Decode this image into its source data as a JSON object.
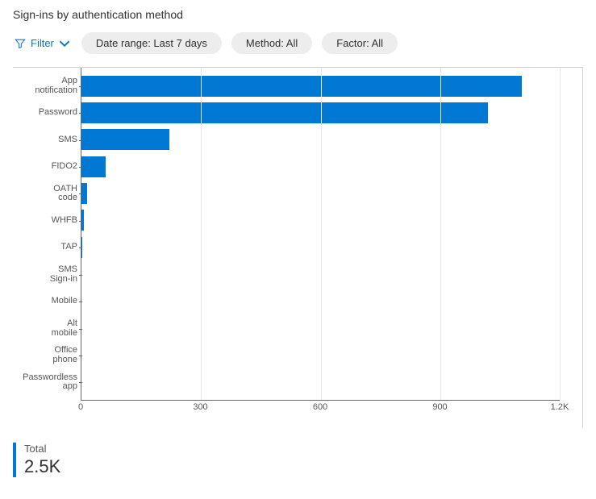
{
  "title": "Sign-ins by authentication method",
  "filters": {
    "filter_label": "Filter",
    "date_range": "Date range: Last 7 days",
    "method": "Method: All",
    "factor": "Factor: All"
  },
  "chart": {
    "type": "bar-horizontal",
    "bar_color": "#0078d4",
    "background_color": "#ffffff",
    "grid_color": "#e5e5e5",
    "axis_color": "#666666",
    "label_fontsize": 11,
    "xlim": [
      0,
      1200
    ],
    "xtick_step": 300,
    "xlabels": [
      "0",
      "300",
      "600",
      "900",
      "1.2K"
    ],
    "categories": [
      "App\nnotification",
      "Password",
      "SMS",
      "FIDO2",
      "OATH\ncode",
      "WHFB",
      "TAP",
      "SMS\nSign-in",
      "Mobile",
      "Alt\nmobile",
      "Office\nphone",
      "Passwordless\napp"
    ],
    "values": [
      1105,
      1020,
      220,
      60,
      15,
      6,
      3,
      0,
      0,
      0,
      0,
      0
    ]
  },
  "summary": {
    "label": "Total",
    "value": "2.5K"
  },
  "colors": {
    "accent": "#0078d4"
  }
}
